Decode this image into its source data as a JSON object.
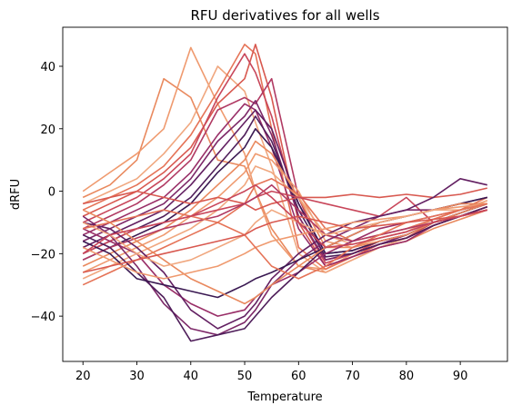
{
  "chart_data": {
    "type": "line",
    "title": "RFU derivatives for all wells",
    "xlabel": "Temperature",
    "ylabel": "dRFU",
    "xlim": [
      16.25,
      98.75
    ],
    "ylim": [
      -54.5,
      52.5
    ],
    "xticks": [
      20,
      30,
      40,
      50,
      60,
      70,
      80,
      90
    ],
    "yticks": [
      -40,
      -20,
      0,
      20,
      40
    ],
    "xtick_labels": [
      "20",
      "30",
      "40",
      "50",
      "60",
      "70",
      "80",
      "90"
    ],
    "ytick_labels": [
      "−40",
      "−20",
      "0",
      "20",
      "40"
    ],
    "grid": false,
    "legend": "none",
    "palette": [
      "#e9895e",
      "#ef9a6f",
      "#f0a77f",
      "#e57357",
      "#d8584f",
      "#c8465a",
      "#b03a63",
      "#992f68",
      "#7d2868",
      "#632062",
      "#4f1e5a",
      "#3a1952"
    ],
    "series": [
      {
        "x": [
          20,
          25,
          30,
          35,
          40,
          45,
          50,
          52,
          55,
          60,
          65,
          70,
          75,
          80,
          85,
          90,
          95
        ],
        "values": [
          -2,
          2,
          10,
          36,
          30,
          10,
          8,
          0,
          -12,
          -24,
          -26,
          -22,
          -18,
          -16,
          -12,
          -9,
          -6
        ]
      },
      {
        "x": [
          20,
          25,
          30,
          35,
          40,
          45,
          50,
          52,
          55,
          60,
          65,
          70,
          75,
          80,
          85,
          90,
          95
        ],
        "values": [
          0,
          6,
          12,
          20,
          46,
          28,
          12,
          0,
          -14,
          -24,
          -25,
          -20,
          -17,
          -15,
          -10,
          -7,
          -4
        ]
      },
      {
        "x": [
          20,
          25,
          30,
          35,
          40,
          45,
          50,
          52,
          55,
          60,
          65,
          70,
          75,
          80,
          85,
          90,
          95
        ],
        "values": [
          -4,
          0,
          4,
          12,
          22,
          40,
          32,
          22,
          8,
          -20,
          -26,
          -22,
          -18,
          -15,
          -11,
          -8,
          -5
        ]
      },
      {
        "x": [
          20,
          25,
          30,
          35,
          40,
          45,
          50,
          52,
          55,
          60,
          65,
          70,
          75,
          80,
          85,
          90,
          95
        ],
        "values": [
          -6,
          -2,
          2,
          8,
          18,
          32,
          47,
          44,
          20,
          -18,
          -25,
          -21,
          -18,
          -16,
          -11,
          -8,
          -5
        ]
      },
      {
        "x": [
          20,
          25,
          30,
          35,
          40,
          45,
          50,
          52,
          55,
          60,
          65,
          70,
          75,
          80,
          85,
          90,
          95
        ],
        "values": [
          -8,
          -4,
          0,
          6,
          14,
          28,
          36,
          47,
          30,
          -10,
          -24,
          -21,
          -17,
          -15,
          -10,
          -7,
          -4
        ]
      },
      {
        "x": [
          20,
          25,
          30,
          35,
          40,
          45,
          50,
          52,
          55,
          60,
          65,
          70,
          75,
          80,
          85,
          90,
          95
        ],
        "values": [
          -10,
          -6,
          -2,
          4,
          12,
          30,
          44,
          38,
          24,
          -8,
          -23,
          -20,
          -16,
          -14,
          -10,
          -7,
          -4
        ]
      },
      {
        "x": [
          20,
          25,
          30,
          35,
          40,
          45,
          50,
          52,
          55,
          60,
          65,
          70,
          75,
          80,
          85,
          90,
          95
        ],
        "values": [
          -12,
          -8,
          -4,
          2,
          10,
          26,
          30,
          28,
          36,
          -2,
          -22,
          -20,
          -17,
          -15,
          -11,
          -8,
          -5
        ]
      },
      {
        "x": [
          20,
          25,
          30,
          35,
          40,
          45,
          50,
          52,
          55,
          60,
          65,
          70,
          75,
          80,
          85,
          90,
          95
        ],
        "values": [
          -14,
          -10,
          -6,
          -2,
          6,
          18,
          28,
          26,
          14,
          -12,
          -24,
          -21,
          -18,
          -16,
          -11,
          -8,
          -5
        ]
      },
      {
        "x": [
          20,
          25,
          30,
          35,
          40,
          45,
          50,
          52,
          55,
          60,
          65,
          70,
          75,
          80,
          85,
          90,
          95
        ],
        "values": [
          -16,
          -12,
          -8,
          -4,
          4,
          16,
          24,
          29,
          18,
          -8,
          -22,
          -20,
          -17,
          -14,
          -10,
          -7,
          -4
        ]
      },
      {
        "x": [
          20,
          25,
          30,
          35,
          40,
          45,
          50,
          52,
          55,
          60,
          65,
          70,
          75,
          80,
          85,
          90,
          95
        ],
        "values": [
          -18,
          -14,
          -10,
          -6,
          2,
          12,
          22,
          26,
          20,
          -4,
          -20,
          -19,
          -16,
          -14,
          -10,
          -7,
          -4
        ]
      },
      {
        "x": [
          20,
          25,
          30,
          35,
          40,
          45,
          50,
          52,
          55,
          60,
          65,
          70,
          75,
          80,
          85,
          90,
          95
        ],
        "values": [
          -20,
          -16,
          -12,
          -8,
          -2,
          8,
          18,
          24,
          16,
          -6,
          -21,
          -20,
          -17,
          -15,
          -11,
          -8,
          -5
        ]
      },
      {
        "x": [
          20,
          25,
          30,
          35,
          40,
          45,
          50,
          52,
          55,
          60,
          65,
          70,
          75,
          80,
          85,
          90,
          95
        ],
        "values": [
          -22,
          -18,
          -14,
          -10,
          -4,
          6,
          14,
          20,
          14,
          -4,
          -20,
          -19,
          -16,
          -14,
          -10,
          -7,
          -4
        ]
      },
      {
        "x": [
          20,
          25,
          30,
          35,
          40,
          45,
          50,
          52,
          55,
          60,
          65,
          70,
          75,
          80,
          85,
          90,
          95
        ],
        "values": [
          -24,
          -20,
          -16,
          -12,
          -6,
          2,
          10,
          16,
          12,
          -2,
          -18,
          -18,
          -16,
          -14,
          -10,
          -7,
          -4
        ]
      },
      {
        "x": [
          20,
          25,
          30,
          35,
          40,
          45,
          50,
          52,
          55,
          60,
          65,
          70,
          75,
          80,
          85,
          90,
          95
        ],
        "values": [
          -26,
          -22,
          -18,
          -14,
          -8,
          -2,
          6,
          12,
          10,
          0,
          -16,
          -18,
          -15,
          -13,
          -9,
          -6,
          -3
        ]
      },
      {
        "x": [
          20,
          25,
          30,
          35,
          40,
          45,
          50,
          52,
          55,
          60,
          65,
          70,
          75,
          80,
          85,
          90,
          95
        ],
        "values": [
          -28,
          -24,
          -20,
          -16,
          -12,
          -6,
          2,
          8,
          6,
          -2,
          -14,
          -17,
          -15,
          -13,
          -9,
          -6,
          -3
        ]
      },
      {
        "x": [
          20,
          25,
          30,
          35,
          40,
          45,
          50,
          52,
          55,
          60,
          65,
          70,
          75,
          80,
          85,
          90,
          95
        ],
        "values": [
          -30,
          -26,
          -22,
          -18,
          -14,
          -10,
          -4,
          2,
          4,
          -1,
          -12,
          -16,
          -14,
          -12,
          -9,
          -6,
          -2
        ]
      },
      {
        "x": [
          20,
          25,
          30,
          35,
          40,
          45,
          50,
          52,
          55,
          60,
          65,
          70,
          75,
          80,
          85,
          90,
          95
        ],
        "values": [
          -4,
          -2,
          0,
          -2,
          -4,
          -2,
          -4,
          -6,
          -4,
          -2,
          -2,
          -1,
          -2,
          -1,
          -2,
          -1,
          1
        ]
      },
      {
        "x": [
          20,
          25,
          30,
          35,
          40,
          45,
          50,
          52,
          55,
          60,
          65,
          70,
          75,
          80,
          85,
          90,
          95
        ],
        "values": [
          -20,
          -16,
          -12,
          -10,
          -8,
          -6,
          -4,
          -2,
          0,
          -2,
          -4,
          -6,
          -8,
          -2,
          -10,
          -8,
          -6
        ]
      },
      {
        "x": [
          20,
          25,
          30,
          35,
          40,
          45,
          50,
          52,
          55,
          60,
          65,
          70,
          75,
          80,
          85,
          90,
          95
        ],
        "values": [
          -22,
          -18,
          -15,
          -12,
          -10,
          -8,
          -4,
          -2,
          2,
          -6,
          -14,
          -16,
          -14,
          -12,
          -10,
          -8,
          -6
        ]
      },
      {
        "x": [
          20,
          25,
          30,
          35,
          40,
          45,
          50,
          52,
          55,
          60,
          65,
          70,
          75,
          80,
          85,
          90,
          95
        ],
        "values": [
          -12,
          -16,
          -20,
          -30,
          -36,
          -40,
          -38,
          -34,
          -30,
          -26,
          -20,
          -16,
          -12,
          -10,
          -8,
          -6,
          -4
        ]
      },
      {
        "x": [
          20,
          25,
          30,
          35,
          40,
          45,
          50,
          52,
          55,
          60,
          65,
          70,
          75,
          80,
          85,
          90,
          95
        ],
        "values": [
          -8,
          -14,
          -24,
          -36,
          -44,
          -46,
          -42,
          -38,
          -30,
          -22,
          -16,
          -12,
          -8,
          -6,
          -6,
          -4,
          -4
        ]
      },
      {
        "x": [
          20,
          25,
          30,
          35,
          40,
          45,
          50,
          52,
          55,
          60,
          65,
          70,
          75,
          80,
          85,
          90,
          95
        ],
        "values": [
          -10,
          -12,
          -18,
          -26,
          -38,
          -44,
          -40,
          -36,
          -28,
          -20,
          -14,
          -10,
          -8,
          -6,
          -2,
          4,
          2
        ]
      },
      {
        "x": [
          20,
          25,
          30,
          35,
          40,
          45,
          50,
          52,
          55,
          60,
          65,
          70,
          75,
          80,
          85,
          90,
          95
        ],
        "values": [
          -14,
          -18,
          -26,
          -34,
          -48,
          -46,
          -44,
          -40,
          -34,
          -26,
          -18,
          -14,
          -10,
          -8,
          -6,
          -4,
          -2
        ]
      },
      {
        "x": [
          20,
          25,
          30,
          35,
          40,
          45,
          50,
          52,
          55,
          60,
          65,
          70,
          75,
          80,
          85,
          90,
          95
        ],
        "values": [
          -16,
          -20,
          -28,
          -30,
          -32,
          -34,
          -30,
          -28,
          -26,
          -22,
          -18,
          -14,
          -10,
          -8,
          -6,
          -4,
          -2
        ]
      },
      {
        "x": [
          20,
          25,
          30,
          35,
          40,
          45,
          50,
          52,
          55,
          60,
          65,
          70,
          75,
          80,
          85,
          90,
          95
        ],
        "values": [
          -6,
          -10,
          -16,
          -22,
          -28,
          -32,
          -36,
          -34,
          -30,
          -24,
          -18,
          -14,
          -10,
          -8,
          -6,
          -4,
          -4
        ]
      },
      {
        "x": [
          20,
          25,
          30,
          35,
          40,
          45,
          50,
          52,
          55,
          60,
          65,
          70,
          75,
          80,
          85,
          90,
          95
        ],
        "values": [
          -18,
          -22,
          -26,
          -28,
          -26,
          -24,
          -20,
          -18,
          -16,
          -14,
          -12,
          -10,
          -9,
          -8,
          -6,
          -5,
          -4
        ]
      },
      {
        "x": [
          20,
          25,
          30,
          35,
          40,
          45,
          50,
          52,
          55,
          60,
          65,
          70,
          75,
          80,
          85,
          90,
          95
        ],
        "values": [
          -10,
          -14,
          -20,
          -24,
          -22,
          -18,
          -14,
          -10,
          -6,
          -10,
          -14,
          -12,
          -10,
          -8,
          -6,
          -6,
          -4
        ]
      },
      {
        "x": [
          20,
          25,
          30,
          35,
          40,
          45,
          50,
          52,
          55,
          60,
          65,
          70,
          75,
          80,
          85,
          90,
          95
        ],
        "values": [
          -12,
          -10,
          -8,
          -6,
          -8,
          -10,
          -14,
          -18,
          -24,
          -28,
          -24,
          -18,
          -14,
          -10,
          -8,
          -6,
          -4
        ]
      },
      {
        "x": [
          20,
          25,
          30,
          35,
          40,
          45,
          50,
          52,
          55,
          60,
          65,
          70,
          75,
          80,
          85,
          90,
          95
        ],
        "values": [
          -26,
          -24,
          -22,
          -20,
          -18,
          -16,
          -14,
          -12,
          -10,
          -8,
          -10,
          -12,
          -11,
          -10,
          -9,
          -8,
          -6
        ]
      },
      {
        "x": [
          20,
          25,
          30,
          35,
          40,
          45,
          50,
          52,
          55,
          60,
          65,
          70,
          75,
          80,
          85,
          90,
          95
        ],
        "values": [
          -20,
          -14,
          -12,
          -10,
          -8,
          -4,
          0,
          2,
          -2,
          -10,
          -18,
          -17,
          -15,
          -13,
          -10,
          -8,
          -6
        ]
      }
    ]
  }
}
